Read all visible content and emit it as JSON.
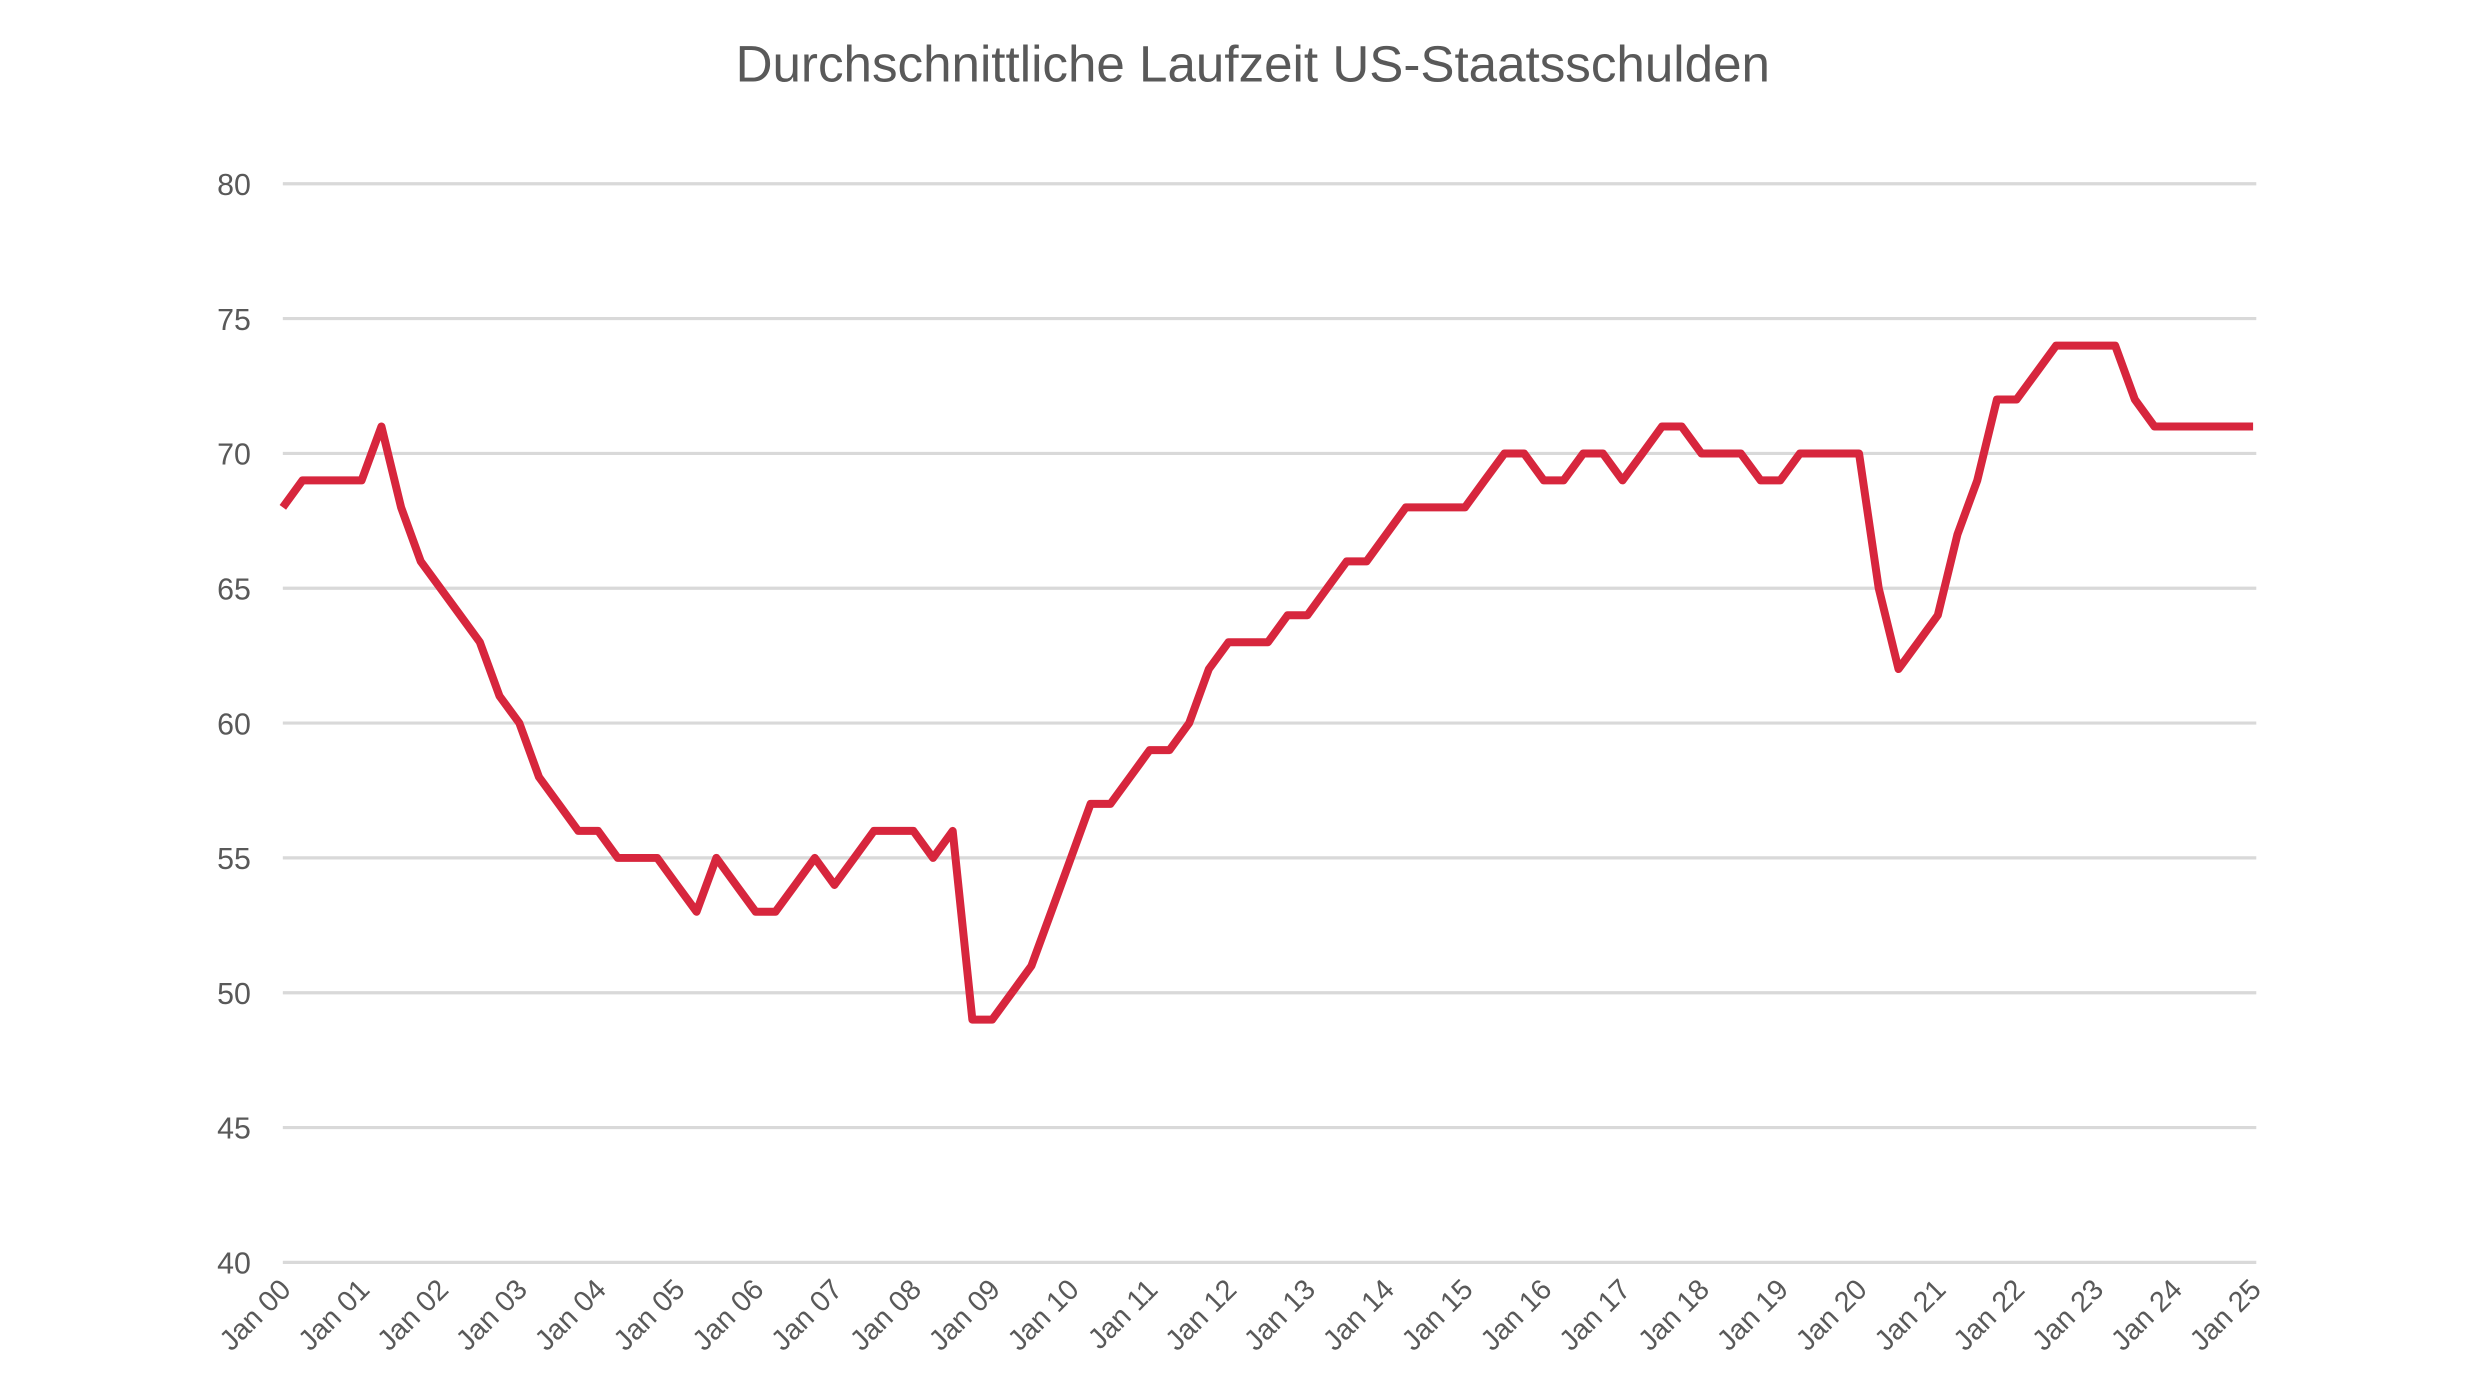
{
  "chart_data": {
    "type": "line",
    "title": "Durchschnittliche Laufzeit US-Staatsschulden",
    "categories": [
      "Jan 00",
      null,
      null,
      null,
      "Jan 01",
      null,
      null,
      null,
      "Jan 02",
      null,
      null,
      null,
      "Jan 03",
      null,
      null,
      null,
      "Jan 04",
      null,
      null,
      null,
      "Jan 05",
      null,
      null,
      null,
      "Jan 06",
      null,
      null,
      null,
      "Jan 07",
      null,
      null,
      null,
      "Jan 08",
      null,
      null,
      null,
      "Jan 09",
      null,
      null,
      null,
      "Jan 10",
      null,
      null,
      null,
      "Jan 11",
      null,
      null,
      null,
      "Jan 12",
      null,
      null,
      null,
      "Jan 13",
      null,
      null,
      null,
      "Jan 14",
      null,
      null,
      null,
      "Jan 15",
      null,
      null,
      null,
      "Jan 16",
      null,
      null,
      null,
      "Jan 17",
      null,
      null,
      null,
      "Jan 18",
      null,
      null,
      null,
      "Jan 19",
      null,
      null,
      null,
      "Jan 20",
      null,
      null,
      null,
      "Jan 21",
      null,
      null,
      null,
      "Jan 22",
      null,
      null,
      null,
      "Jan 23",
      null,
      null,
      null,
      "Jan 24",
      null,
      null,
      null,
      "Jan 25"
    ],
    "series": [
      {
        "name": "Durchschnittliche Laufzeit",
        "color": "#d7263d",
        "values": [
          68,
          69,
          69,
          69,
          69,
          71,
          68,
          66,
          65,
          64,
          63,
          61,
          60,
          58,
          57,
          56,
          56,
          55,
          55,
          55,
          54,
          53,
          55,
          54,
          53,
          53,
          54,
          55,
          54,
          55,
          56,
          56,
          56,
          55,
          56,
          49,
          49,
          50,
          51,
          53,
          55,
          57,
          57,
          58,
          59,
          59,
          60,
          62,
          63,
          63,
          63,
          64,
          64,
          65,
          66,
          66,
          67,
          68,
          68,
          68,
          68,
          69,
          70,
          70,
          69,
          69,
          70,
          70,
          69,
          70,
          71,
          71,
          70,
          70,
          70,
          69,
          69,
          70,
          70,
          70,
          70,
          65,
          62,
          63,
          64,
          67,
          69,
          72,
          72,
          73,
          74,
          74,
          74,
          74,
          72,
          71,
          71,
          71,
          71,
          71,
          71
        ]
      }
    ],
    "ylim": [
      40,
      80
    ],
    "yticks": [
      40,
      45,
      50,
      55,
      60,
      65,
      70,
      75,
      80
    ],
    "grid": true
  }
}
